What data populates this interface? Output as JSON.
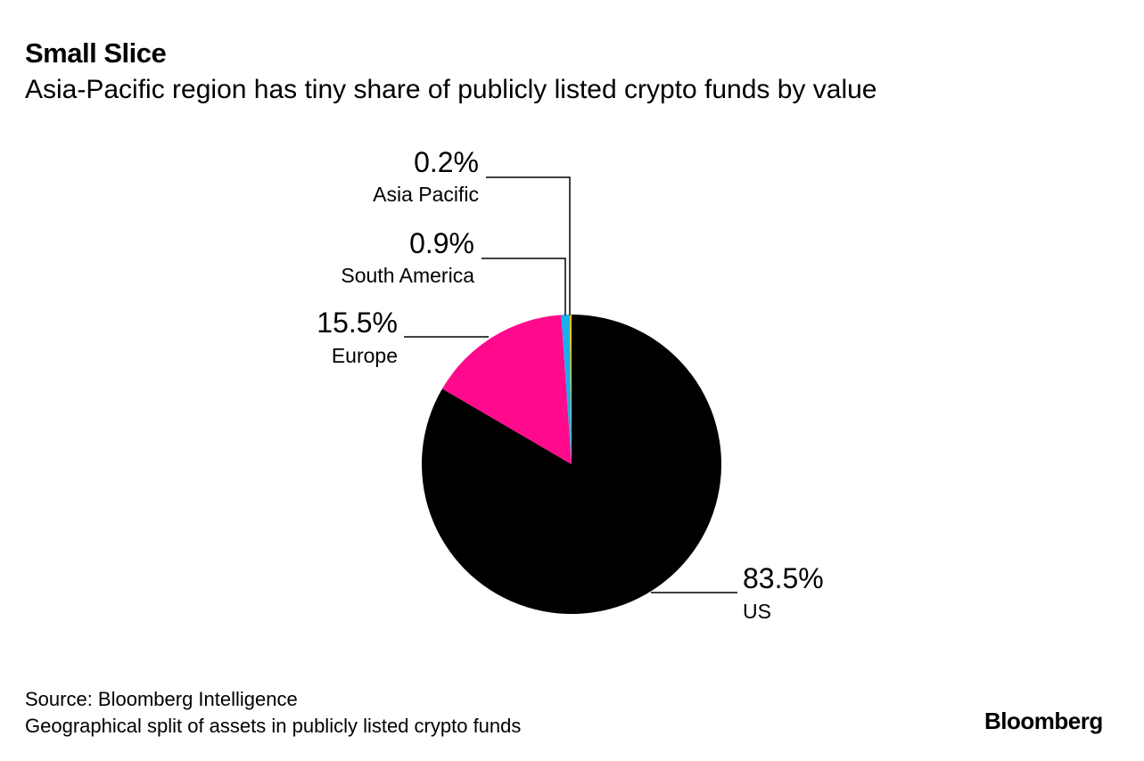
{
  "header": {
    "title": "Small Slice",
    "subtitle": "Asia-Pacific region has tiny share of publicly listed crypto funds by value"
  },
  "footer": {
    "source": "Source: Bloomberg Intelligence",
    "note": "Geographical split of assets in publicly listed crypto funds",
    "logo": "Bloomberg"
  },
  "chart_data": {
    "type": "pie",
    "title": "Small Slice",
    "subtitle": "Asia-Pacific region has tiny share of publicly listed crypto funds by value",
    "unit": "%",
    "start": "top, clockwise",
    "slices": [
      {
        "label": "US",
        "value": 83.5,
        "display": "83.5%",
        "color": "#000000"
      },
      {
        "label": "Europe",
        "value": 15.5,
        "display": "15.5%",
        "color": "#ff0a8c"
      },
      {
        "label": "South America",
        "value": 0.9,
        "display": "0.9%",
        "color": "#1aaeef"
      },
      {
        "label": "Asia Pacific",
        "value": 0.2,
        "display": "0.2%",
        "color": "#f5c400"
      }
    ]
  }
}
